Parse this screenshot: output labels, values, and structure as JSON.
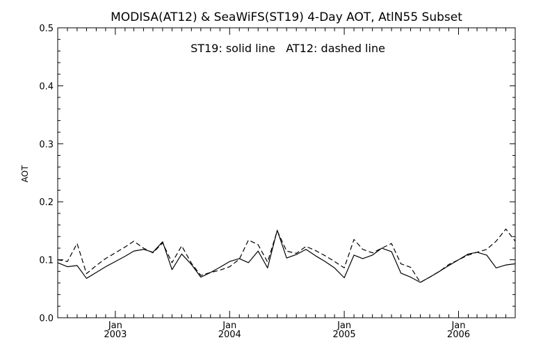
{
  "chart_data": {
    "type": "line",
    "title": "MODISA(AT12) & SeaWiFS(ST19) 4-Day AOT, AtlN55 Subset",
    "annotation": "ST19: solid line   AT12: dashed line",
    "ylabel": "AOT",
    "xlabel": "",
    "xlim": [
      "2002-07-01",
      "2006-07-01"
    ],
    "ylim": [
      0.0,
      0.5
    ],
    "yticks": [
      "0.0",
      "0.1",
      "0.2",
      "0.3",
      "0.4",
      "0.5"
    ],
    "xticks": [
      {
        "month": "Jan",
        "year": "2003",
        "x": "2003-01-01"
      },
      {
        "month": "Jan",
        "year": "2004",
        "x": "2004-01-01"
      },
      {
        "month": "Jan",
        "year": "2005",
        "x": "2005-01-01"
      },
      {
        "month": "Jan",
        "year": "2006",
        "x": "2006-01-01"
      }
    ],
    "grid": false,
    "series": [
      {
        "name": "ST19",
        "style": "solid",
        "x": [
          "2002-07-01",
          "2002-08-01",
          "2002-09-01",
          "2002-10-01",
          "2002-11-01",
          "2002-12-01",
          "2003-01-01",
          "2003-02-01",
          "2003-03-01",
          "2003-04-01",
          "2003-05-01",
          "2003-06-01",
          "2003-07-01",
          "2003-08-01",
          "2003-09-01",
          "2003-10-01",
          "2003-11-01",
          "2003-12-01",
          "2004-01-01",
          "2004-02-01",
          "2004-03-01",
          "2004-04-01",
          "2004-05-01",
          "2004-06-01",
          "2004-07-01",
          "2004-08-01",
          "2004-09-01",
          "2004-10-01",
          "2004-11-01",
          "2004-12-01",
          "2005-01-01",
          "2005-02-01",
          "2005-03-01",
          "2005-04-01",
          "2005-05-01",
          "2005-06-01",
          "2005-07-01",
          "2005-08-01",
          "2005-09-01",
          "2005-10-01",
          "2005-11-01",
          "2005-12-01",
          "2006-01-01",
          "2006-02-01",
          "2006-03-01",
          "2006-04-01",
          "2006-05-01",
          "2006-06-01",
          "2006-07-01"
        ],
        "values": [
          0.095,
          0.088,
          0.09,
          0.068,
          0.078,
          0.088,
          0.097,
          0.106,
          0.115,
          0.118,
          0.113,
          0.131,
          0.083,
          0.11,
          0.092,
          0.07,
          0.078,
          0.087,
          0.097,
          0.102,
          0.095,
          0.115,
          0.086,
          0.151,
          0.103,
          0.109,
          0.118,
          0.107,
          0.097,
          0.086,
          0.069,
          0.108,
          0.102,
          0.108,
          0.12,
          0.114,
          0.077,
          0.07,
          0.061,
          0.07,
          0.08,
          0.09,
          0.1,
          0.11,
          0.113,
          0.108,
          0.086,
          0.091,
          0.093
        ]
      },
      {
        "name": "AT12",
        "style": "dashed",
        "x": [
          "2002-07-01",
          "2002-08-01",
          "2002-09-01",
          "2002-10-01",
          "2002-11-01",
          "2002-12-01",
          "2003-01-01",
          "2003-02-01",
          "2003-03-01",
          "2003-04-01",
          "2003-05-01",
          "2003-06-01",
          "2003-07-01",
          "2003-08-01",
          "2003-09-01",
          "2003-10-01",
          "2003-11-01",
          "2003-12-01",
          "2004-01-01",
          "2004-02-01",
          "2004-03-01",
          "2004-04-01",
          "2004-05-01",
          "2004-06-01",
          "2004-07-01",
          "2004-08-01",
          "2004-09-01",
          "2004-10-01",
          "2004-11-01",
          "2004-12-01",
          "2005-01-01",
          "2005-02-01",
          "2005-03-01",
          "2005-04-01",
          "2005-05-01",
          "2005-06-01",
          "2005-07-01",
          "2005-08-01",
          "2005-09-01",
          "2005-10-01",
          "2005-11-01",
          "2005-12-01",
          "2006-01-01",
          "2006-02-01",
          "2006-03-01",
          "2006-04-01",
          "2006-05-01",
          "2006-06-01",
          "2006-07-01"
        ],
        "values": [
          0.1,
          0.097,
          0.128,
          0.076,
          0.09,
          0.102,
          0.112,
          0.122,
          0.132,
          0.12,
          0.112,
          0.129,
          0.095,
          0.124,
          0.094,
          0.073,
          0.078,
          0.082,
          0.088,
          0.101,
          0.134,
          0.126,
          0.096,
          0.15,
          0.115,
          0.111,
          0.123,
          0.116,
          0.107,
          0.097,
          0.086,
          0.135,
          0.118,
          0.112,
          0.12,
          0.128,
          0.093,
          0.087,
          0.061,
          0.07,
          0.08,
          0.092,
          0.1,
          0.108,
          0.113,
          0.118,
          0.132,
          0.153,
          0.132
        ]
      }
    ]
  }
}
